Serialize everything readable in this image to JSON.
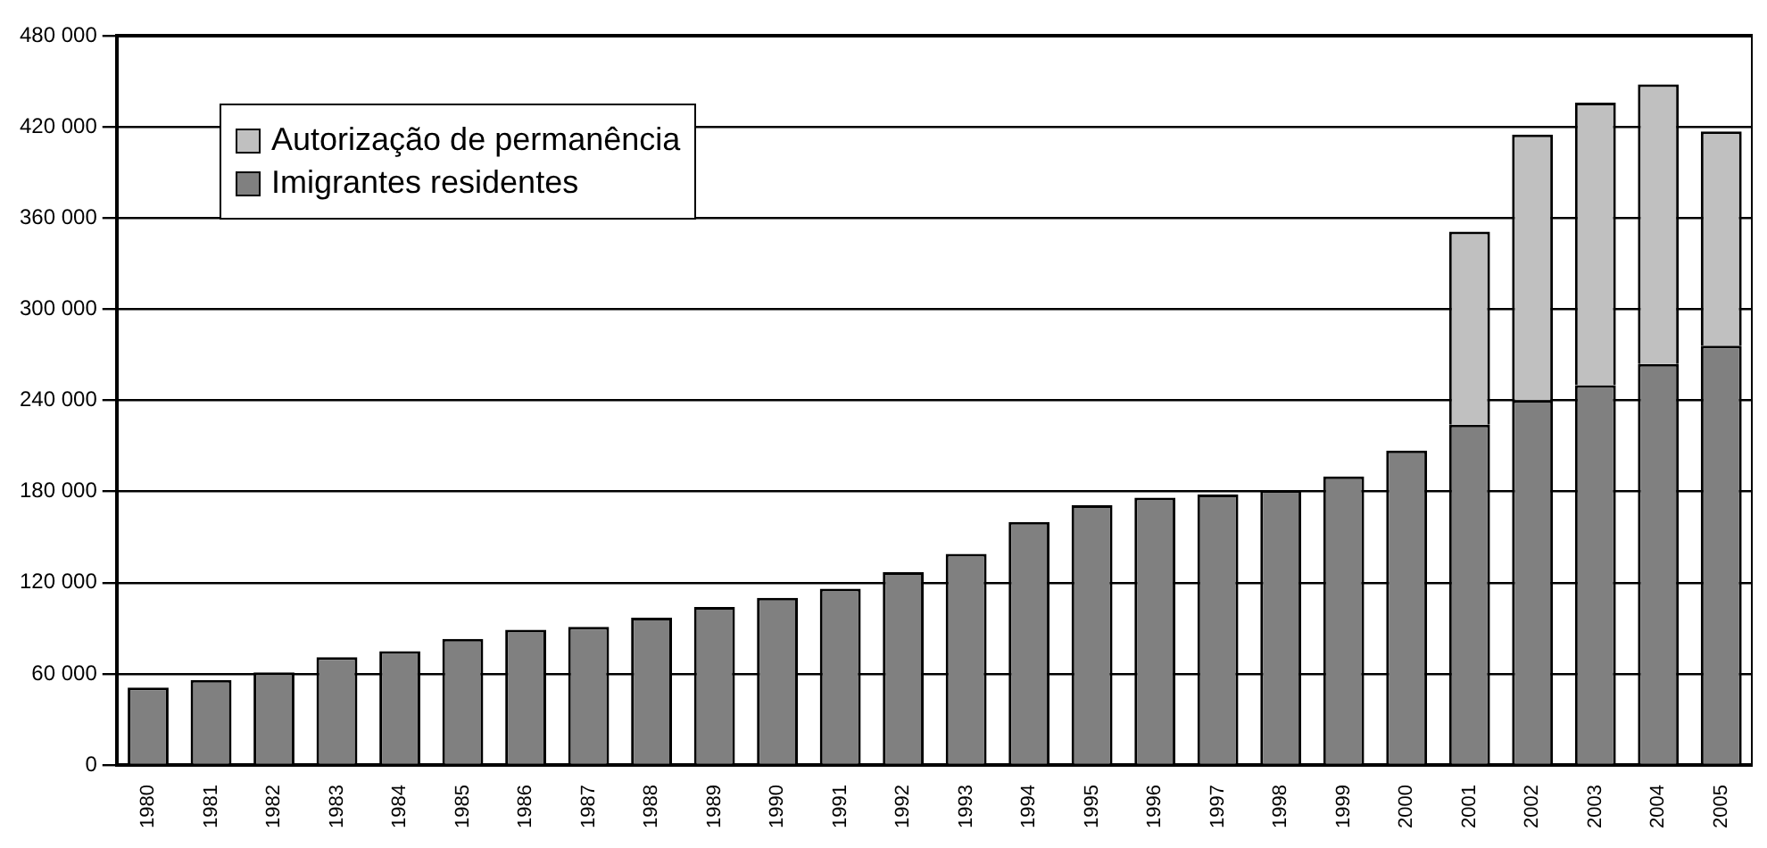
{
  "chart_data": {
    "type": "bar",
    "stacked": true,
    "categories": [
      "1980",
      "1981",
      "1982",
      "1983",
      "1984",
      "1985",
      "1986",
      "1987",
      "1988",
      "1989",
      "1990",
      "1991",
      "1992",
      "1993",
      "1994",
      "1995",
      "1996",
      "1997",
      "1998",
      "1999",
      "2000",
      "2001",
      "2002",
      "2003",
      "2004",
      "2005"
    ],
    "series": [
      {
        "name": "Imigrantes residentes",
        "color": "#808080",
        "values": [
          51000,
          56000,
          61000,
          71000,
          75000,
          83000,
          89000,
          91000,
          97000,
          104000,
          110000,
          116000,
          127000,
          139000,
          160000,
          171000,
          176000,
          178000,
          181000,
          190000,
          207000,
          224000,
          240000,
          250000,
          264000,
          276000
        ]
      },
      {
        "name": "Autorização de permanência",
        "color": "#c0c0c0",
        "values": [
          null,
          null,
          null,
          null,
          null,
          null,
          null,
          null,
          null,
          null,
          null,
          null,
          null,
          null,
          null,
          null,
          null,
          null,
          null,
          null,
          null,
          127000,
          175000,
          186000,
          184000,
          141000
        ]
      }
    ],
    "ylim": [
      0,
      480000
    ],
    "yticks": [
      0,
      {
        "value": 60000,
        "label": "60 000"
      },
      {
        "value": 120000,
        "label": "120 000"
      },
      {
        "value": 180000,
        "label": "180 000"
      },
      {
        "value": 240000,
        "label": "240 000"
      },
      {
        "value": 300000,
        "label": "300 000"
      },
      {
        "value": 360000,
        "label": "360 000"
      },
      {
        "value": 420000,
        "label": "420 000"
      },
      {
        "value": 480000,
        "label": "480 000"
      }
    ],
    "grid": "y",
    "legend": "top left"
  }
}
